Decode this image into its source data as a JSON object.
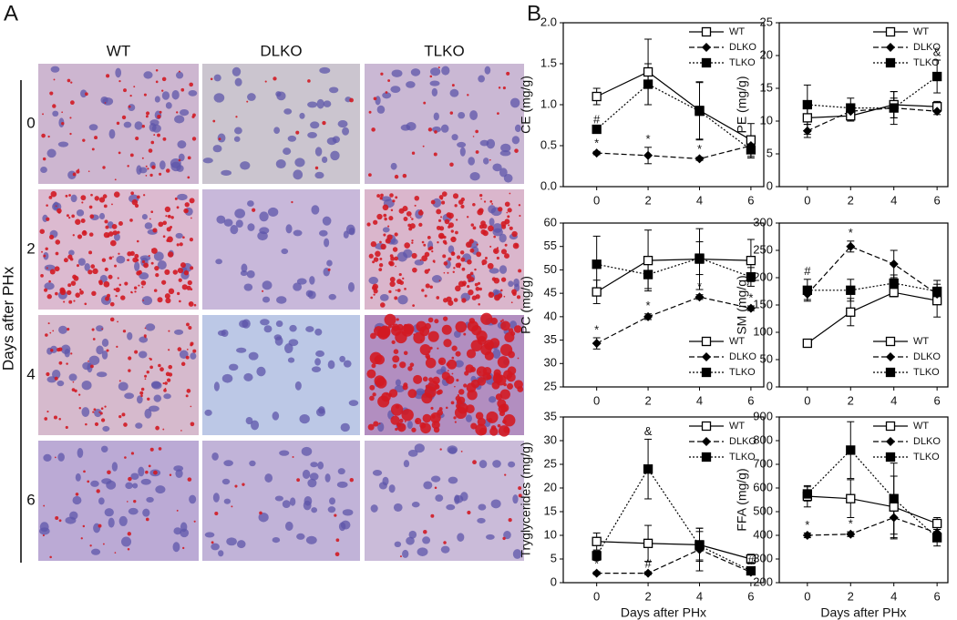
{
  "panel_a": {
    "label": "A",
    "columns": [
      "WT",
      "DLKO",
      "TLKO"
    ],
    "rows": [
      "0",
      "2",
      "4",
      "6"
    ],
    "row_axis_label": "Days after PHx"
  },
  "panel_b_label": "B",
  "chart_data": [
    {
      "type": "line",
      "ylabel": "CE (mg/g)",
      "x": [
        0,
        2,
        4,
        6
      ],
      "xlim": [
        -1.3,
        6.5
      ],
      "xticks": [
        0,
        2,
        4,
        6
      ],
      "ylim": [
        0,
        2
      ],
      "yticks": [
        {
          "value": 0,
          "label": "0.0"
        },
        0.5,
        {
          "value": 1,
          "label": "1.0"
        },
        1.5,
        {
          "value": 2,
          "label": "2.0"
        }
      ],
      "legend": "upper right",
      "series": [
        {
          "name": "WT",
          "color": "#000000",
          "dash": "solid",
          "marker": "open-square",
          "values": [
            1.1,
            1.4,
            0.93,
            0.57
          ],
          "errors": [
            0.1,
            0.4,
            0.35,
            0.2
          ],
          "annotations": [
            null,
            null,
            null,
            null
          ]
        },
        {
          "name": "DLKO",
          "color": "#000000",
          "dash": "dashed",
          "marker": "diamond",
          "values": [
            0.41,
            0.38,
            0.34,
            0.5
          ],
          "errors": [
            0.02,
            0.1,
            0.02,
            0.1
          ],
          "annotations": [
            "*",
            "*",
            "*",
            null
          ]
        },
        {
          "name": "TLKO",
          "color": "#000000",
          "dash": "dotted",
          "marker": "square",
          "values": [
            0.7,
            1.25,
            0.92,
            0.45
          ],
          "errors": [
            0.02,
            0.25,
            0.35,
            0.1
          ],
          "annotations": [
            "#",
            null,
            null,
            null
          ]
        }
      ]
    },
    {
      "type": "line",
      "ylabel": "PE (mg/g)",
      "x": [
        0,
        2,
        4,
        6
      ],
      "xlim": [
        -1.3,
        6.5
      ],
      "xticks": [
        0,
        2,
        4,
        6
      ],
      "ylim": [
        0,
        25
      ],
      "yticks": [
        0,
        5,
        10,
        15,
        20,
        25
      ],
      "legend": "upper right",
      "series": [
        {
          "name": "WT",
          "color": "#000000",
          "dash": "solid",
          "marker": "open-square",
          "values": [
            10.5,
            10.8,
            12.5,
            12.2
          ],
          "errors": [
            2.5,
            0.8,
            2,
            0.8
          ],
          "annotations": [
            null,
            null,
            null,
            null
          ]
        },
        {
          "name": "DLKO",
          "color": "#000000",
          "dash": "dashed",
          "marker": "diamond",
          "values": [
            8.5,
            11.5,
            12,
            11.5
          ],
          "errors": [
            1,
            0.8,
            1.5,
            0.5
          ],
          "annotations": [
            null,
            null,
            null,
            null
          ]
        },
        {
          "name": "TLKO",
          "color": "#000000",
          "dash": "dotted",
          "marker": "square",
          "values": [
            12.5,
            12,
            12,
            16.8
          ],
          "errors": [
            3,
            1.5,
            2.5,
            2.5
          ],
          "annotations": [
            null,
            null,
            null,
            "&"
          ]
        }
      ]
    },
    {
      "type": "line",
      "ylabel": "PC (mg/g)",
      "x": [
        0,
        2,
        4,
        6
      ],
      "xlim": [
        -1.3,
        6.5
      ],
      "xticks": [
        0,
        2,
        4,
        6
      ],
      "ylim": [
        25,
        60
      ],
      "yticks": [
        25,
        30,
        35,
        40,
        45,
        50,
        55,
        60
      ],
      "legend": "lower right",
      "series": [
        {
          "name": "WT",
          "color": "#000000",
          "dash": "solid",
          "marker": "open-square",
          "values": [
            45.3,
            52,
            52.3,
            52
          ],
          "errors": [
            2.5,
            6.5,
            6.5,
            4.5
          ],
          "annotations": [
            null,
            null,
            null,
            null
          ]
        },
        {
          "name": "DLKO",
          "color": "#000000",
          "dash": "dashed",
          "marker": "diamond",
          "values": [
            34.3,
            40,
            44.2,
            41.8
          ],
          "errors": [
            1.2,
            0.6,
            0.5,
            0.5
          ],
          "annotations": [
            "*",
            "*",
            "*",
            "*"
          ]
        },
        {
          "name": "TLKO",
          "color": "#000000",
          "dash": "dotted",
          "marker": "square",
          "values": [
            51.2,
            49,
            52.5,
            48.5
          ],
          "errors": [
            6,
            3,
            3.5,
            2
          ],
          "annotations": [
            null,
            null,
            null,
            null
          ]
        }
      ]
    },
    {
      "type": "line",
      "ylabel": "SM (mg/g)",
      "x": [
        0,
        2,
        4,
        6
      ],
      "xlim": [
        -1.3,
        6.5
      ],
      "xticks": [
        0,
        2,
        4,
        6
      ],
      "ylim": [
        0,
        300
      ],
      "yticks": [
        0,
        50,
        100,
        150,
        200,
        250,
        300
      ],
      "legend": "lower right",
      "series": [
        {
          "name": "WT",
          "color": "#000000",
          "dash": "solid",
          "marker": "open-square",
          "values": [
            80,
            137,
            173,
            158
          ],
          "errors": [
            4,
            25,
            8,
            30
          ],
          "annotations": [
            null,
            null,
            null,
            null
          ]
        },
        {
          "name": "DLKO",
          "color": "#000000",
          "dash": "dashed",
          "marker": "diamond",
          "values": [
            170,
            257,
            225,
            170
          ],
          "errors": [
            10,
            10,
            25,
            10
          ],
          "annotations": [
            null,
            "*",
            null,
            null
          ]
        },
        {
          "name": "TLKO",
          "color": "#000000",
          "dash": "dotted",
          "marker": "square",
          "values": [
            177,
            177,
            190,
            175
          ],
          "errors": [
            20,
            20,
            15,
            20
          ],
          "annotations": [
            "#",
            null,
            null,
            null
          ]
        }
      ]
    },
    {
      "type": "line",
      "ylabel": "Tryglycerides (mg/g)",
      "xlabel": "Days after PHx",
      "x": [
        0,
        2,
        4,
        6
      ],
      "xlim": [
        -1.3,
        6.5
      ],
      "xticks": [
        0,
        2,
        4,
        6
      ],
      "ylim": [
        0,
        35
      ],
      "yticks": [
        0,
        5,
        10,
        15,
        20,
        25,
        30,
        35
      ],
      "legend": "upper right",
      "series": [
        {
          "name": "WT",
          "color": "#000000",
          "dash": "solid",
          "marker": "open-square",
          "values": [
            8.7,
            8.3,
            8,
            5
          ],
          "errors": [
            1.8,
            3.8,
            3.5,
            1
          ],
          "annotations": [
            null,
            null,
            null,
            null
          ]
        },
        {
          "name": "DLKO",
          "color": "#000000",
          "dash": "dashed",
          "marker": "diamond",
          "values": [
            2,
            2,
            7,
            2.2
          ],
          "errors": [
            0.3,
            0.3,
            4.5,
            0.3
          ],
          "annotations": [
            "*",
            "#",
            null,
            null
          ]
        },
        {
          "name": "TLKO",
          "color": "#000000",
          "dash": "dotted",
          "marker": "square",
          "values": [
            5.7,
            24,
            7.8,
            2.5
          ],
          "errors": [
            1,
            6.3,
            3,
            0.5
          ],
          "annotations": [
            null,
            "&",
            null,
            "#"
          ]
        }
      ]
    },
    {
      "type": "line",
      "ylabel": "FFA (mg/g)",
      "xlabel": "Days after PHx",
      "x": [
        0,
        2,
        4,
        6
      ],
      "xlim": [
        -1.3,
        6.5
      ],
      "xticks": [
        0,
        2,
        4,
        6
      ],
      "ylim": [
        200,
        900
      ],
      "yticks": [
        200,
        300,
        400,
        500,
        600,
        700,
        800,
        900
      ],
      "legend": "upper right",
      "series": [
        {
          "name": "WT",
          "color": "#000000",
          "dash": "solid",
          "marker": "open-square",
          "values": [
            565,
            555,
            520,
            450
          ],
          "errors": [
            45,
            80,
            130,
            25
          ],
          "annotations": [
            null,
            null,
            null,
            null
          ]
        },
        {
          "name": "DLKO",
          "color": "#000000",
          "dash": "dashed",
          "marker": "diamond",
          "values": [
            400,
            405,
            475,
            410
          ],
          "errors": [
            10,
            10,
            90,
            30
          ],
          "annotations": [
            "*",
            "*",
            null,
            null
          ]
        },
        {
          "name": "TLKO",
          "color": "#000000",
          "dash": "dotted",
          "marker": "square",
          "values": [
            575,
            760,
            555,
            390
          ],
          "errors": [
            30,
            120,
            150,
            35
          ],
          "annotations": [
            null,
            null,
            null,
            null
          ]
        }
      ]
    }
  ]
}
